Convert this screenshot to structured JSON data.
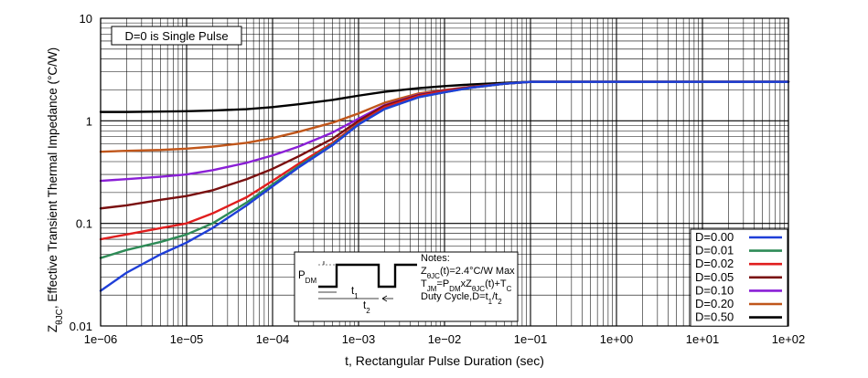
{
  "chart_data": {
    "type": "line",
    "xlabel": "t, Rectangular Pulse Duration (sec)",
    "ylabel_main": "Z",
    "ylabel_sub": "θJC",
    "ylabel_rest": ", Effective Transient Thermal Impedance (°C/W)",
    "x_scale": "log",
    "y_scale": "log",
    "xlim": [
      1e-06,
      100
    ],
    "ylim": [
      0.01,
      10
    ],
    "grid": true,
    "x_ticks": [
      1e-06,
      1e-05,
      0.0001,
      0.001,
      0.01,
      0.1,
      1,
      10,
      100
    ],
    "x_tick_labels": [
      "1e−06",
      "1e−05",
      "1e−04",
      "1e−03",
      "1e−02",
      "1e−01",
      "1e+00",
      "1e+01",
      "1e+02"
    ],
    "y_ticks": [
      0.01,
      0.1,
      1,
      10
    ],
    "y_tick_labels": [
      "0.01",
      "0.1",
      "1",
      "10"
    ],
    "annotation_top": "D=0 is Single Pulse",
    "legend_placement": "bottom-right",
    "series": [
      {
        "name": "D=0.00",
        "color": "#1f3fd8",
        "x": [
          1e-06,
          2e-06,
          5e-06,
          1e-05,
          2e-05,
          5e-05,
          0.0001,
          0.0002,
          0.0005,
          0.001,
          0.002,
          0.005,
          0.01,
          0.02,
          0.05,
          0.1,
          100
        ],
        "y": [
          0.022,
          0.033,
          0.05,
          0.065,
          0.09,
          0.15,
          0.23,
          0.35,
          0.58,
          0.92,
          1.3,
          1.7,
          1.9,
          2.1,
          2.3,
          2.4,
          2.4
        ]
      },
      {
        "name": "D=0.01",
        "color": "#2e8b57",
        "x": [
          1e-06,
          2e-06,
          5e-06,
          1e-05,
          2e-05,
          5e-05,
          0.0001,
          0.0002,
          0.0005,
          0.001,
          0.002,
          0.005,
          0.01,
          0.02,
          0.05,
          0.1,
          100
        ],
        "y": [
          0.046,
          0.055,
          0.066,
          0.078,
          0.1,
          0.16,
          0.24,
          0.36,
          0.59,
          0.93,
          1.3,
          1.7,
          1.9,
          2.1,
          2.3,
          2.4,
          2.4
        ]
      },
      {
        "name": "D=0.02",
        "color": "#e01e1e",
        "x": [
          1e-06,
          2e-06,
          5e-06,
          1e-05,
          2e-05,
          5e-05,
          0.0001,
          0.0002,
          0.0005,
          0.001,
          0.002,
          0.005,
          0.01,
          0.02,
          0.05,
          0.1,
          100
        ],
        "y": [
          0.07,
          0.078,
          0.09,
          0.1,
          0.125,
          0.18,
          0.26,
          0.38,
          0.61,
          0.95,
          1.35,
          1.75,
          1.95,
          2.1,
          2.3,
          2.4,
          2.4
        ]
      },
      {
        "name": "D=0.05",
        "color": "#7a1010",
        "x": [
          1e-06,
          2e-06,
          5e-06,
          1e-05,
          2e-05,
          5e-05,
          0.0001,
          0.0002,
          0.0005,
          0.001,
          0.002,
          0.005,
          0.01,
          0.02,
          0.05,
          0.1,
          100
        ],
        "y": [
          0.14,
          0.15,
          0.17,
          0.185,
          0.21,
          0.27,
          0.34,
          0.45,
          0.67,
          1.0,
          1.4,
          1.78,
          1.97,
          2.12,
          2.3,
          2.4,
          2.4
        ]
      },
      {
        "name": "D=0.10",
        "color": "#8a1fd6",
        "x": [
          1e-06,
          2e-06,
          5e-06,
          1e-05,
          2e-05,
          5e-05,
          0.0001,
          0.0002,
          0.0005,
          0.001,
          0.002,
          0.005,
          0.01,
          0.02,
          0.05,
          0.1,
          100
        ],
        "y": [
          0.26,
          0.27,
          0.285,
          0.3,
          0.33,
          0.39,
          0.46,
          0.56,
          0.77,
          1.05,
          1.42,
          1.8,
          1.98,
          2.13,
          2.3,
          2.4,
          2.4
        ]
      },
      {
        "name": "D=0.20",
        "color": "#c0561a",
        "x": [
          1e-06,
          2e-06,
          5e-06,
          1e-05,
          2e-05,
          5e-05,
          0.0001,
          0.0002,
          0.0005,
          0.001,
          0.002,
          0.005,
          0.01,
          0.02,
          0.05,
          0.1,
          100
        ],
        "y": [
          0.5,
          0.51,
          0.52,
          0.535,
          0.56,
          0.61,
          0.68,
          0.78,
          0.96,
          1.18,
          1.5,
          1.85,
          2.0,
          2.15,
          2.3,
          2.4,
          2.4
        ]
      },
      {
        "name": "D=0.50",
        "color": "#000000",
        "x": [
          1e-06,
          2e-06,
          5e-06,
          1e-05,
          2e-05,
          5e-05,
          0.0001,
          0.0002,
          0.0005,
          0.001,
          0.002,
          0.005,
          0.01,
          0.02,
          0.05,
          0.1,
          100
        ],
        "y": [
          1.22,
          1.22,
          1.23,
          1.24,
          1.26,
          1.3,
          1.36,
          1.45,
          1.6,
          1.76,
          1.92,
          2.08,
          2.18,
          2.26,
          2.35,
          2.4,
          2.4
        ]
      }
    ],
    "notes": {
      "title": "Notes:",
      "line1_a": "Z",
      "line1_sub": "θJC",
      "line1_b": "(t)=2.4°C/W Max",
      "line2_a": "T",
      "line2_sub1": "JM",
      "line2_b": "=P",
      "line2_sub2": "DM",
      "line2_c": "xZ",
      "line2_sub3": "θJC",
      "line2_d": "(t)+T",
      "line2_sub4": "C",
      "line3_a": "Duty Cycle,D=t",
      "line3_sub1": "1",
      "line3_b": "/t",
      "line3_sub2": "2",
      "pdm_a": "P",
      "pdm_sub": "DM",
      "t1_a": "t",
      "t1_sub": "1",
      "t2_a": "t",
      "t2_sub": "2"
    }
  }
}
